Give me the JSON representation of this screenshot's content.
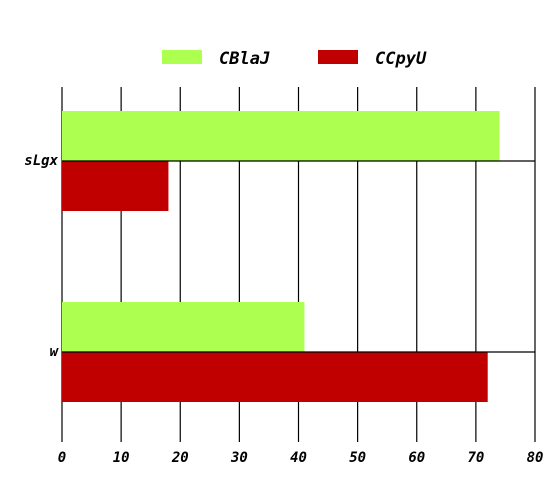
{
  "chart_data": {
    "type": "bar",
    "orientation": "horizontal",
    "categories": [
      "sLgx",
      "w"
    ],
    "series": [
      {
        "name": "CBlaJ",
        "color": "#adff50",
        "values": [
          74,
          41
        ]
      },
      {
        "name": "CCpyU",
        "color": "#c00000",
        "values": [
          18,
          72
        ]
      }
    ],
    "xlim": [
      0,
      80
    ],
    "xticks": [
      "0",
      "10",
      "20",
      "30",
      "40",
      "50",
      "60",
      "70",
      "80"
    ],
    "grid": "vertical",
    "legend_position": "top-center"
  }
}
